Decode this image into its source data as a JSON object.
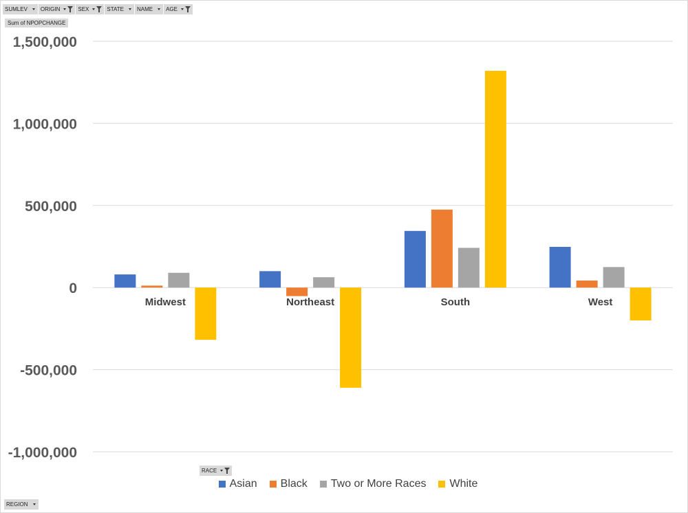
{
  "filters": [
    {
      "label": "SUMLEV",
      "filtered": false
    },
    {
      "label": "ORIGIN",
      "filtered": true
    },
    {
      "label": "SEX",
      "filtered": true
    },
    {
      "label": "STATE",
      "filtered": false
    },
    {
      "label": "NAME",
      "filtered": false
    },
    {
      "label": "AGE",
      "filtered": true
    }
  ],
  "value_field": "Sum of NPOPCHANGE",
  "legend_field": {
    "label": "RACE",
    "filtered": true
  },
  "axis_field": {
    "label": "REGION",
    "filtered": false
  },
  "chart_data": {
    "type": "bar",
    "categories": [
      "Midwest",
      "Northeast",
      "South",
      "West"
    ],
    "series": [
      {
        "name": "Asian",
        "color": "#4472c4",
        "values": [
          80000,
          100000,
          345000,
          248000
        ]
      },
      {
        "name": "Black",
        "color": "#ed7d31",
        "values": [
          12000,
          -52000,
          475000,
          43000
        ]
      },
      {
        "name": "Two or More Races",
        "color": "#a5a5a5",
        "values": [
          90000,
          63000,
          242000,
          125000
        ]
      },
      {
        "name": "White",
        "color": "#ffc000",
        "values": [
          -318000,
          -610000,
          1320000,
          -200000
        ]
      }
    ],
    "ylim": [
      -1000000,
      1500000
    ],
    "yticks": [
      {
        "value": 1500000,
        "label": "1,500,000"
      },
      {
        "value": 1000000,
        "label": "1,000,000"
      },
      {
        "value": 500000,
        "label": "500,000"
      },
      {
        "value": 0,
        "label": "0"
      },
      {
        "value": -500000,
        "label": "-500,000"
      },
      {
        "value": -1000000,
        "label": "-1,000,000"
      }
    ],
    "grid": true,
    "legend_position": "bottom",
    "title": "",
    "xlabel": "",
    "ylabel": ""
  }
}
